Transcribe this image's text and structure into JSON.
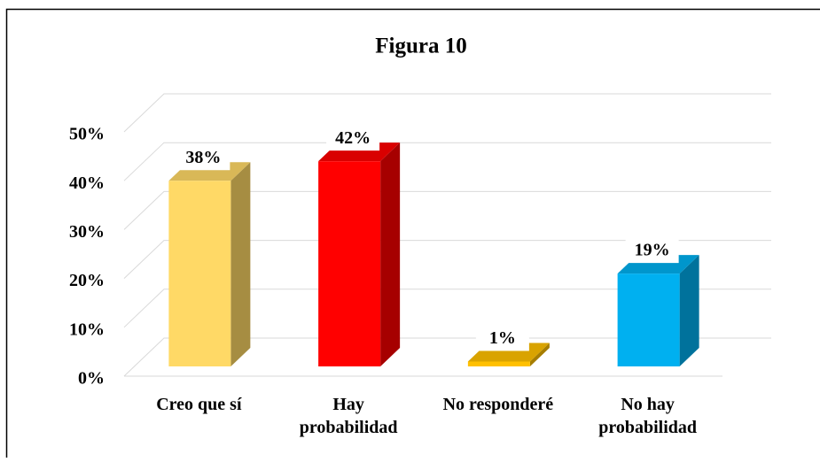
{
  "chart_data": {
    "type": "bar3d",
    "title": "Figura 10",
    "categories": [
      "Creo que sí",
      "Hay probabilidad",
      "No responderé",
      "No hay probabilidad"
    ],
    "values": [
      38,
      42,
      1,
      19
    ],
    "value_labels": [
      "38%",
      "42%",
      "1%",
      "19%"
    ],
    "colors": [
      "#FFD966",
      "#FF0000",
      "#FFC000",
      "#00B0F0"
    ],
    "ylim": [
      0,
      50
    ],
    "yticks": [
      {
        "value": 0,
        "label": "0%"
      },
      {
        "value": 10,
        "label": "10%"
      },
      {
        "value": 20,
        "label": "20%"
      },
      {
        "value": 30,
        "label": "30%"
      },
      {
        "value": 40,
        "label": "40%"
      },
      {
        "value": 50,
        "label": "50%"
      }
    ],
    "grid": true
  }
}
